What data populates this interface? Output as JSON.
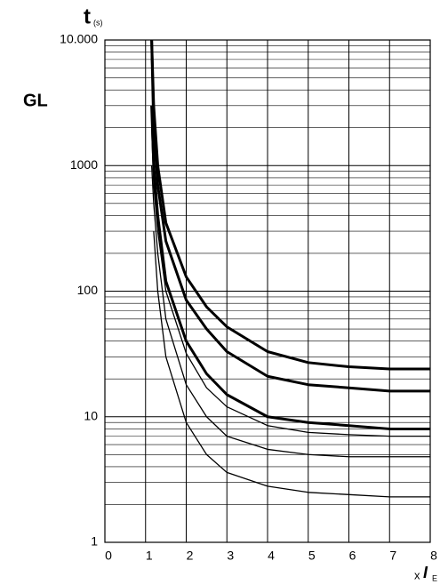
{
  "chart_data": {
    "type": "line",
    "title": "GL",
    "ylabel": "t",
    "ylabel_sub": "(s)",
    "xlabel": "x",
    "xlabel_symbol": "I",
    "xlabel_sub": "E",
    "x": [
      1.15,
      1.2,
      1.3,
      1.5,
      2,
      2.5,
      3,
      4,
      5,
      6,
      7,
      8
    ],
    "series": [
      {
        "color": "#000000",
        "line_width": 3,
        "values": [
          10000,
          3000,
          1000,
          350,
          130,
          75,
          52,
          33,
          27,
          25,
          24,
          24
        ]
      },
      {
        "color": "#000000",
        "line_width": 3,
        "values": [
          10000,
          2000,
          700,
          250,
          85,
          50,
          33,
          21,
          18,
          17,
          16,
          16
        ]
      },
      {
        "color": "#000000",
        "line_width": 3,
        "values": [
          3000,
          1000,
          400,
          120,
          40,
          22,
          15,
          10,
          9,
          8.5,
          8,
          8
        ]
      },
      {
        "color": "#000000",
        "line_width": 1.3,
        "values": [
          2000,
          700,
          300,
          100,
          32,
          17,
          12,
          8.5,
          7.5,
          7.2,
          7,
          7
        ]
      },
      {
        "color": "#000000",
        "line_width": 1.3,
        "values": [
          1000,
          500,
          200,
          60,
          18,
          10,
          7,
          5.5,
          5,
          4.8,
          4.8,
          4.8
        ]
      },
      {
        "color": "#000000",
        "line_width": 1.3,
        "values": [
          null,
          300,
          100,
          30,
          9,
          5,
          3.6,
          2.8,
          2.5,
          2.4,
          2.3,
          2.3
        ]
      }
    ],
    "xlim": [
      0,
      8
    ],
    "xticks": [
      0,
      1,
      2,
      3,
      4,
      5,
      6,
      7,
      8
    ],
    "ylim": [
      1,
      10000
    ],
    "yticks": [
      1,
      10,
      100,
      1000,
      {
        "value": 10000,
        "label": "10.000"
      }
    ],
    "ylog": true,
    "grid": true,
    "yminor_grid": true
  }
}
